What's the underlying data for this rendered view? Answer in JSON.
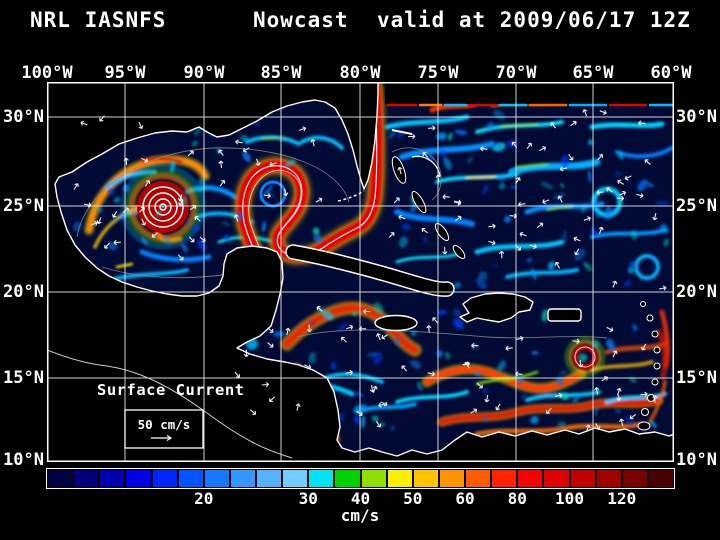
{
  "title": {
    "product": "NRL IASNFS",
    "mode": "Nowcast",
    "valid": "valid at 2009/06/17 12Z"
  },
  "axes": {
    "lon": [
      "100°W",
      "95°W",
      "90°W",
      "85°W",
      "80°W",
      "75°W",
      "70°W",
      "65°W",
      "60°W"
    ],
    "lat": [
      "30°N",
      "25°N",
      "20°N",
      "15°N",
      "10°N"
    ]
  },
  "map_overlay": {
    "field_label": "Surface Current",
    "scale_label": "50 cm/s"
  },
  "colorbar": {
    "unit": "cm/s",
    "n_cells": 24,
    "cell_colors": [
      "#000042",
      "#000078",
      "#0000ae",
      "#0000e4",
      "#0026ff",
      "#0055ff",
      "#1678ff",
      "#3696ff",
      "#55b2ff",
      "#72ccff",
      "#00e2f6",
      "#00d200",
      "#8ede00",
      "#f8f000",
      "#ffc400",
      "#ff9400",
      "#ff5c00",
      "#ff2400",
      "#f60000",
      "#df0000",
      "#c30000",
      "#a00000",
      "#7a0000",
      "#4a0000"
    ],
    "ticks": [
      {
        "label": "20",
        "boundary": 6
      },
      {
        "label": "30",
        "boundary": 10
      },
      {
        "label": "40",
        "boundary": 12
      },
      {
        "label": "50",
        "boundary": 14
      },
      {
        "label": "60",
        "boundary": 16
      },
      {
        "label": "80",
        "boundary": 18
      },
      {
        "label": "100",
        "boundary": 20
      },
      {
        "label": "120",
        "boundary": 22
      }
    ]
  },
  "chart_data": {
    "type": "heatmap",
    "title": "NRL IASNFS Nowcast valid at 2009/06/17 12Z",
    "variable": "Surface Current speed with current-direction arrows",
    "unit": "cm/s",
    "region": "Intra-Americas Sea: Gulf of Mexico, Caribbean Sea, western North Atlantic",
    "x_axis": {
      "label": "Longitude",
      "ticks": [
        "100°W",
        "95°W",
        "90°W",
        "85°W",
        "80°W",
        "75°W",
        "70°W",
        "65°W",
        "60°W"
      ]
    },
    "y_axis": {
      "label": "Latitude",
      "ticks": [
        "30°N",
        "25°N",
        "20°N",
        "15°N",
        "10°N"
      ]
    },
    "colorbar_tick_values": [
      20,
      30,
      40,
      50,
      60,
      80,
      100,
      120
    ],
    "reference_vector": "50 cm/s",
    "grid": true,
    "legend_position": "bottom",
    "features": [
      "Loop Current ring in Gulf of Mexico",
      "anticyclonic bullseye eddy near 95W 25N",
      "Gulf Stream along Florida east coast",
      "Caribbean Current bands",
      "no-data region north of model boundary in NE corner"
    ]
  }
}
